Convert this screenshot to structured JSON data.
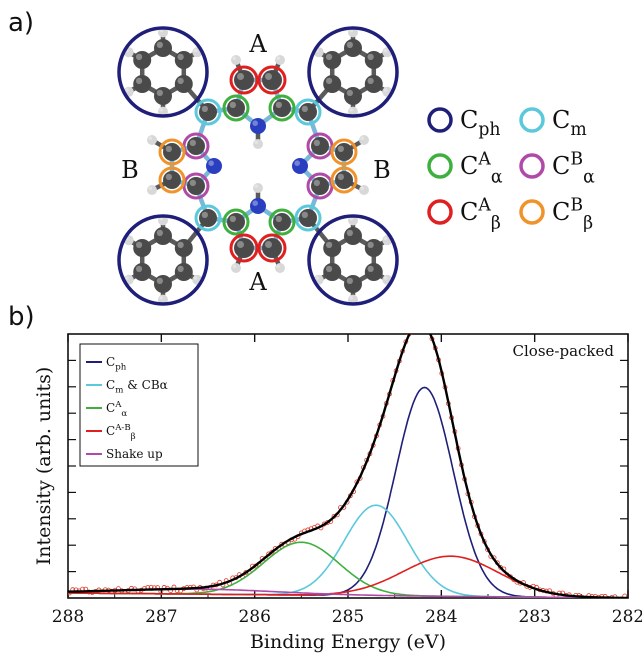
{
  "panel_a": {
    "label": "a)",
    "region_labels": {
      "A": "A",
      "B": "B"
    },
    "legend": [
      {
        "main": "C",
        "sup": "",
        "sub": "ph",
        "color": "#1f1f7a"
      },
      {
        "main": "C",
        "sup": "",
        "sub": "m",
        "color": "#5bc8dc"
      },
      {
        "main": "C",
        "sup": "A",
        "sub": "α",
        "color": "#3fb03f"
      },
      {
        "main": "C",
        "sup": "B",
        "sub": "α",
        "color": "#b04aa8"
      },
      {
        "main": "C",
        "sup": "A",
        "sub": "β",
        "color": "#e02020"
      },
      {
        "main": "C",
        "sup": "B",
        "sub": "β",
        "color": "#f0932b"
      }
    ],
    "atom_colors": {
      "carbon": "#4a4a4a",
      "nitrogen": "#2a3fbf",
      "hydrogen": "#d8d8d8"
    }
  },
  "panel_b": {
    "label": "b)",
    "chart_data": {
      "type": "line",
      "title": "",
      "annotation": "Close-packed",
      "xlabel": "Binding Energy (eV)",
      "ylabel": "Intensity (arb. units)",
      "xlim": [
        288,
        282
      ],
      "x_reversed": true,
      "xticks": [
        288,
        287,
        286,
        285,
        284,
        283,
        282
      ],
      "ylim": [
        0,
        1.05
      ],
      "y_ticks_labeled": false,
      "grid": false,
      "legend_position": "top-left",
      "baseline": {
        "x": [
          288,
          282
        ],
        "y": [
          0.02,
          0.0
        ]
      },
      "series": [
        {
          "name": "C_ph",
          "legend": {
            "main": "C",
            "sup": "",
            "sub": "ph",
            "extra": ""
          },
          "color": "#1f1f7a",
          "peak": {
            "center": 284.18,
            "height": 0.83,
            "fwhm": 0.72
          }
        },
        {
          "name": "C_m & C^B_α",
          "legend": {
            "main": "C",
            "sup": "",
            "sub": "m",
            "extra": "& CBα"
          },
          "color": "#5bc8dc",
          "peak": {
            "center": 284.7,
            "height": 0.36,
            "fwhm": 0.8
          }
        },
        {
          "name": "C^A_α",
          "legend": {
            "main": "C",
            "sup": "A",
            "sub": "α",
            "extra": ""
          },
          "color": "#3fb03f",
          "peak": {
            "center": 285.5,
            "height": 0.21,
            "fwhm": 0.95
          }
        },
        {
          "name": "C^A-B_β",
          "legend": {
            "main": "C",
            "sup": "A-B",
            "sub": "β",
            "extra": ""
          },
          "color": "#e02020",
          "peak": {
            "center": 283.9,
            "height": 0.16,
            "fwhm": 1.2
          }
        },
        {
          "name": "Shake up",
          "legend": {
            "main": "Shake up",
            "sup": "",
            "sub": "",
            "extra": ""
          },
          "color": "#b04aa8",
          "peak": {
            "center": 286.6,
            "height": 0.02,
            "fwhm": 2.0
          }
        }
      ],
      "envelope_color": "#000000",
      "data_points_color": "#e03a2a"
    }
  }
}
